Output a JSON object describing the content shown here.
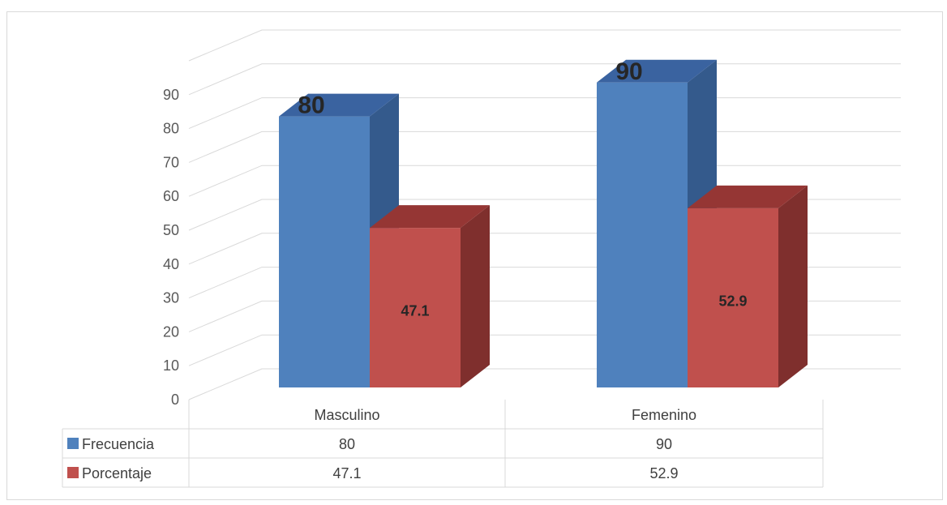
{
  "chart_data": {
    "type": "bar",
    "variant": "3d-clustered-column-with-data-table",
    "categories": [
      "Masculino",
      "Femenino"
    ],
    "series": [
      {
        "name": "Frecuencia",
        "values": [
          80,
          90
        ],
        "color": "#4f81bd",
        "side_color": "#345a8c",
        "top_color": "#3a63a0"
      },
      {
        "name": "Porcentaje",
        "values": [
          47.1,
          52.9
        ],
        "color": "#c0504d",
        "side_color": "#7f2f2d",
        "top_color": "#953634"
      }
    ],
    "data_labels": {
      "Frecuencia": [
        "80",
        "90"
      ],
      "Porcentaje": [
        "47.1",
        "52.9"
      ]
    },
    "y_ticks": [
      "0",
      "10",
      "20",
      "30",
      "40",
      "50",
      "60",
      "70",
      "80",
      "90"
    ],
    "ylim": [
      0,
      90
    ],
    "grid": true,
    "legend": "data-table",
    "table": {
      "rows": [
        {
          "label": "Frecuencia",
          "cells": [
            "80",
            "90"
          ]
        },
        {
          "label": "Porcentaje",
          "cells": [
            "47.1",
            "52.9"
          ]
        }
      ]
    }
  }
}
